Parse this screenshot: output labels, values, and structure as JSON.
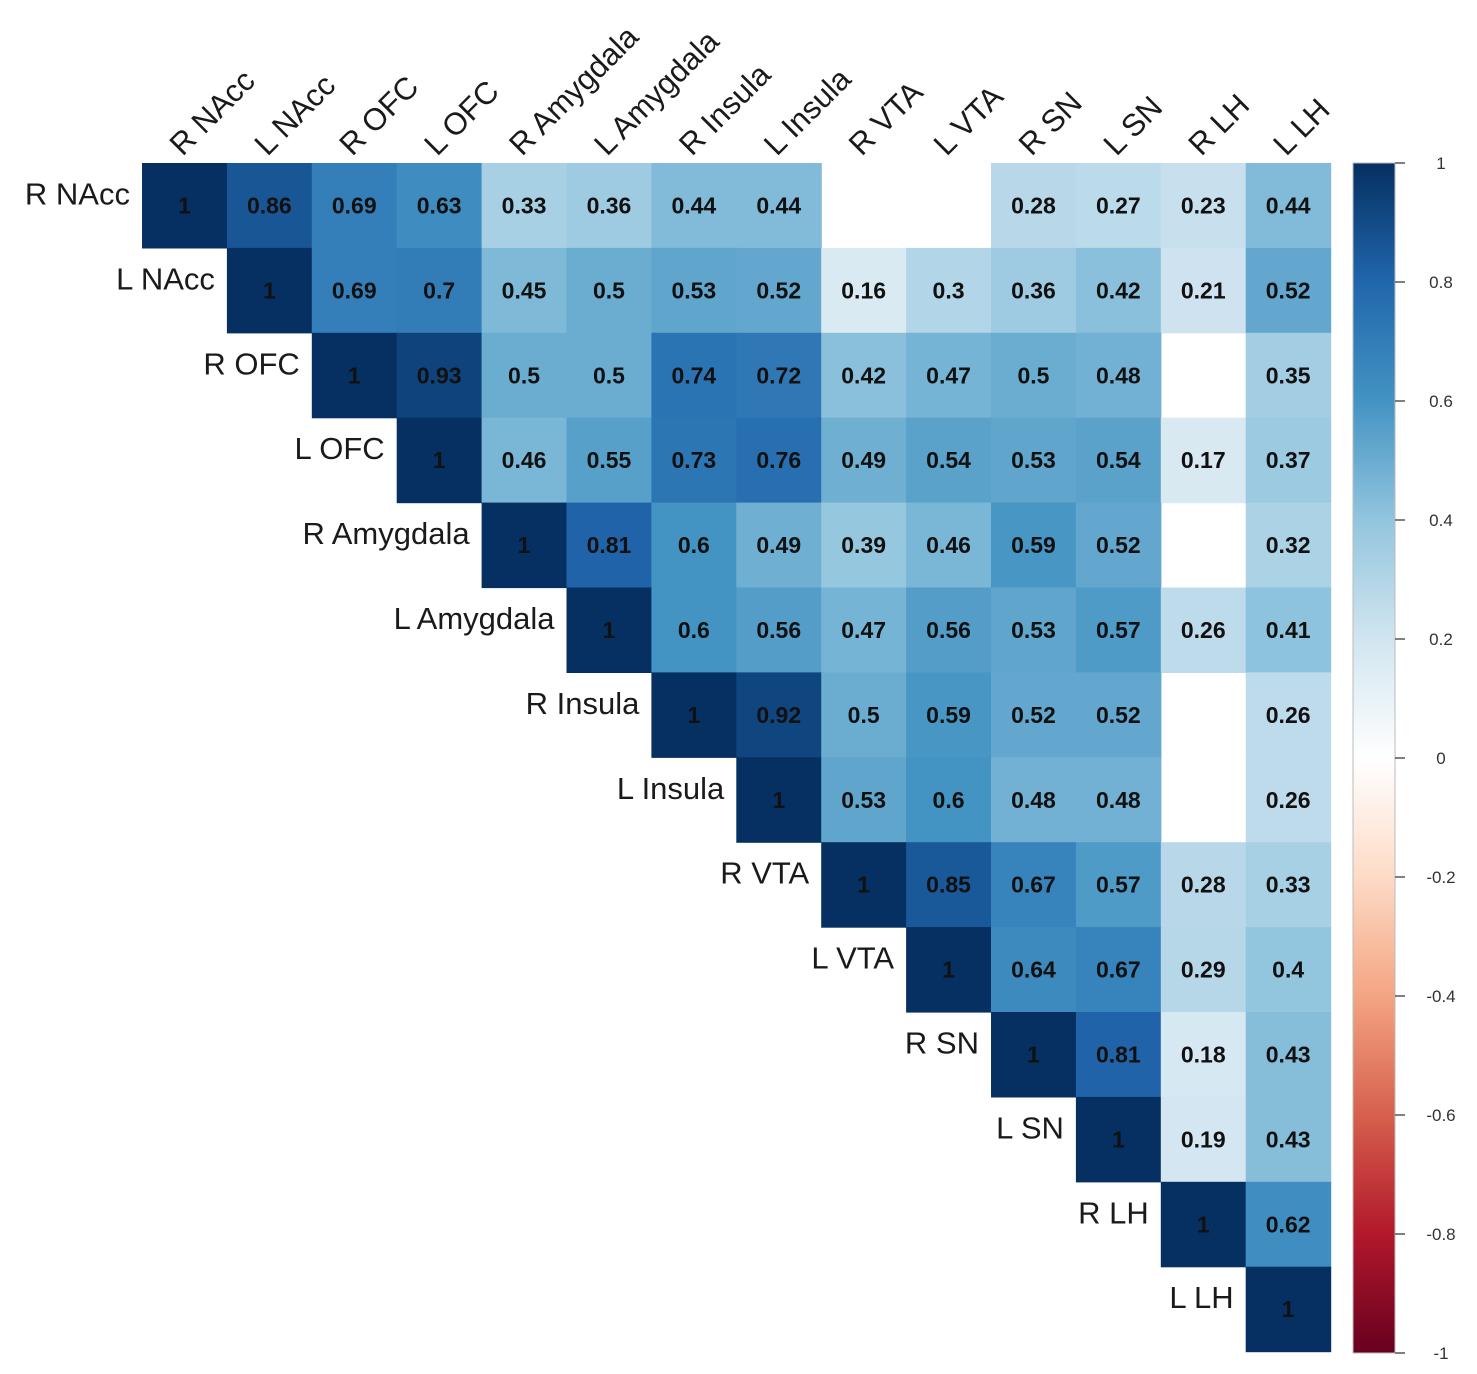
{
  "chart_data": {
    "type": "heatmap",
    "title": "",
    "variables": [
      "R NAcc",
      "L NAcc",
      "R OFC",
      "L OFC",
      "R Amygdala",
      "L Amygdala",
      "R Insula",
      "L Insula",
      "R VTA",
      "L VTA",
      "R SN",
      "L SN",
      "R LH",
      "L LH"
    ],
    "matrix": [
      [
        "1",
        "0.86",
        "0.69",
        "0.63",
        "0.33",
        "0.36",
        "0.44",
        "0.44",
        "",
        "",
        "0.28",
        "0.27",
        "0.23",
        "0.44"
      ],
      [
        "",
        "1",
        "0.69",
        "0.7",
        "0.45",
        "0.5",
        "0.53",
        "0.52",
        "0.16",
        "0.3",
        "0.36",
        "0.42",
        "0.21",
        "0.52"
      ],
      [
        "",
        "",
        "1",
        "0.93",
        "0.5",
        "0.5",
        "0.74",
        "0.72",
        "0.42",
        "0.47",
        "0.5",
        "0.48",
        "",
        "0.35"
      ],
      [
        "",
        "",
        "",
        "1",
        "0.46",
        "0.55",
        "0.73",
        "0.76",
        "0.49",
        "0.54",
        "0.53",
        "0.54",
        "0.17",
        "0.37"
      ],
      [
        "",
        "",
        "",
        "",
        "1",
        "0.81",
        "0.6",
        "0.49",
        "0.39",
        "0.46",
        "0.59",
        "0.52",
        "",
        "0.32"
      ],
      [
        "",
        "",
        "",
        "",
        "",
        "1",
        "0.6",
        "0.56",
        "0.47",
        "0.56",
        "0.53",
        "0.57",
        "0.26",
        "0.41"
      ],
      [
        "",
        "",
        "",
        "",
        "",
        "",
        "1",
        "0.92",
        "0.5",
        "0.59",
        "0.52",
        "0.52",
        "",
        "0.26"
      ],
      [
        "",
        "",
        "",
        "",
        "",
        "",
        "",
        "1",
        "0.53",
        "0.6",
        "0.48",
        "0.48",
        "",
        "0.26"
      ],
      [
        "",
        "",
        "",
        "",
        "",
        "",
        "",
        "",
        "1",
        "0.85",
        "0.67",
        "0.57",
        "0.28",
        "0.33"
      ],
      [
        "",
        "",
        "",
        "",
        "",
        "",
        "",
        "",
        "",
        "1",
        "0.64",
        "0.67",
        "0.29",
        "0.4"
      ],
      [
        "",
        "",
        "",
        "",
        "",
        "",
        "",
        "",
        "",
        "",
        "1",
        "0.81",
        "0.18",
        "0.43"
      ],
      [
        "",
        "",
        "",
        "",
        "",
        "",
        "",
        "",
        "",
        "",
        "",
        "1",
        "0.19",
        "0.43"
      ],
      [
        "",
        "",
        "",
        "",
        "",
        "",
        "",
        "",
        "",
        "",
        "",
        "",
        "1",
        "0.62"
      ],
      [
        "",
        "",
        "",
        "",
        "",
        "",
        "",
        "",
        "",
        "",
        "",
        "",
        "",
        "1"
      ]
    ],
    "color_range": [
      -1,
      1
    ],
    "colorbar_ticks": [
      "1",
      "0.8",
      "0.6",
      "0.4",
      "0.2",
      "0",
      "-0.2",
      "-0.4",
      "-0.6",
      "-0.8",
      "-1"
    ],
    "colorbar_placement": "right",
    "palette": [
      "#67001f",
      "#b2182b",
      "#d6604d",
      "#f4a582",
      "#fddbc7",
      "#ffffff",
      "#d1e5f0",
      "#92c5de",
      "#4393c3",
      "#2166ac",
      "#053061"
    ],
    "blank_cells": "not shown (non-significant)",
    "grid": false
  }
}
